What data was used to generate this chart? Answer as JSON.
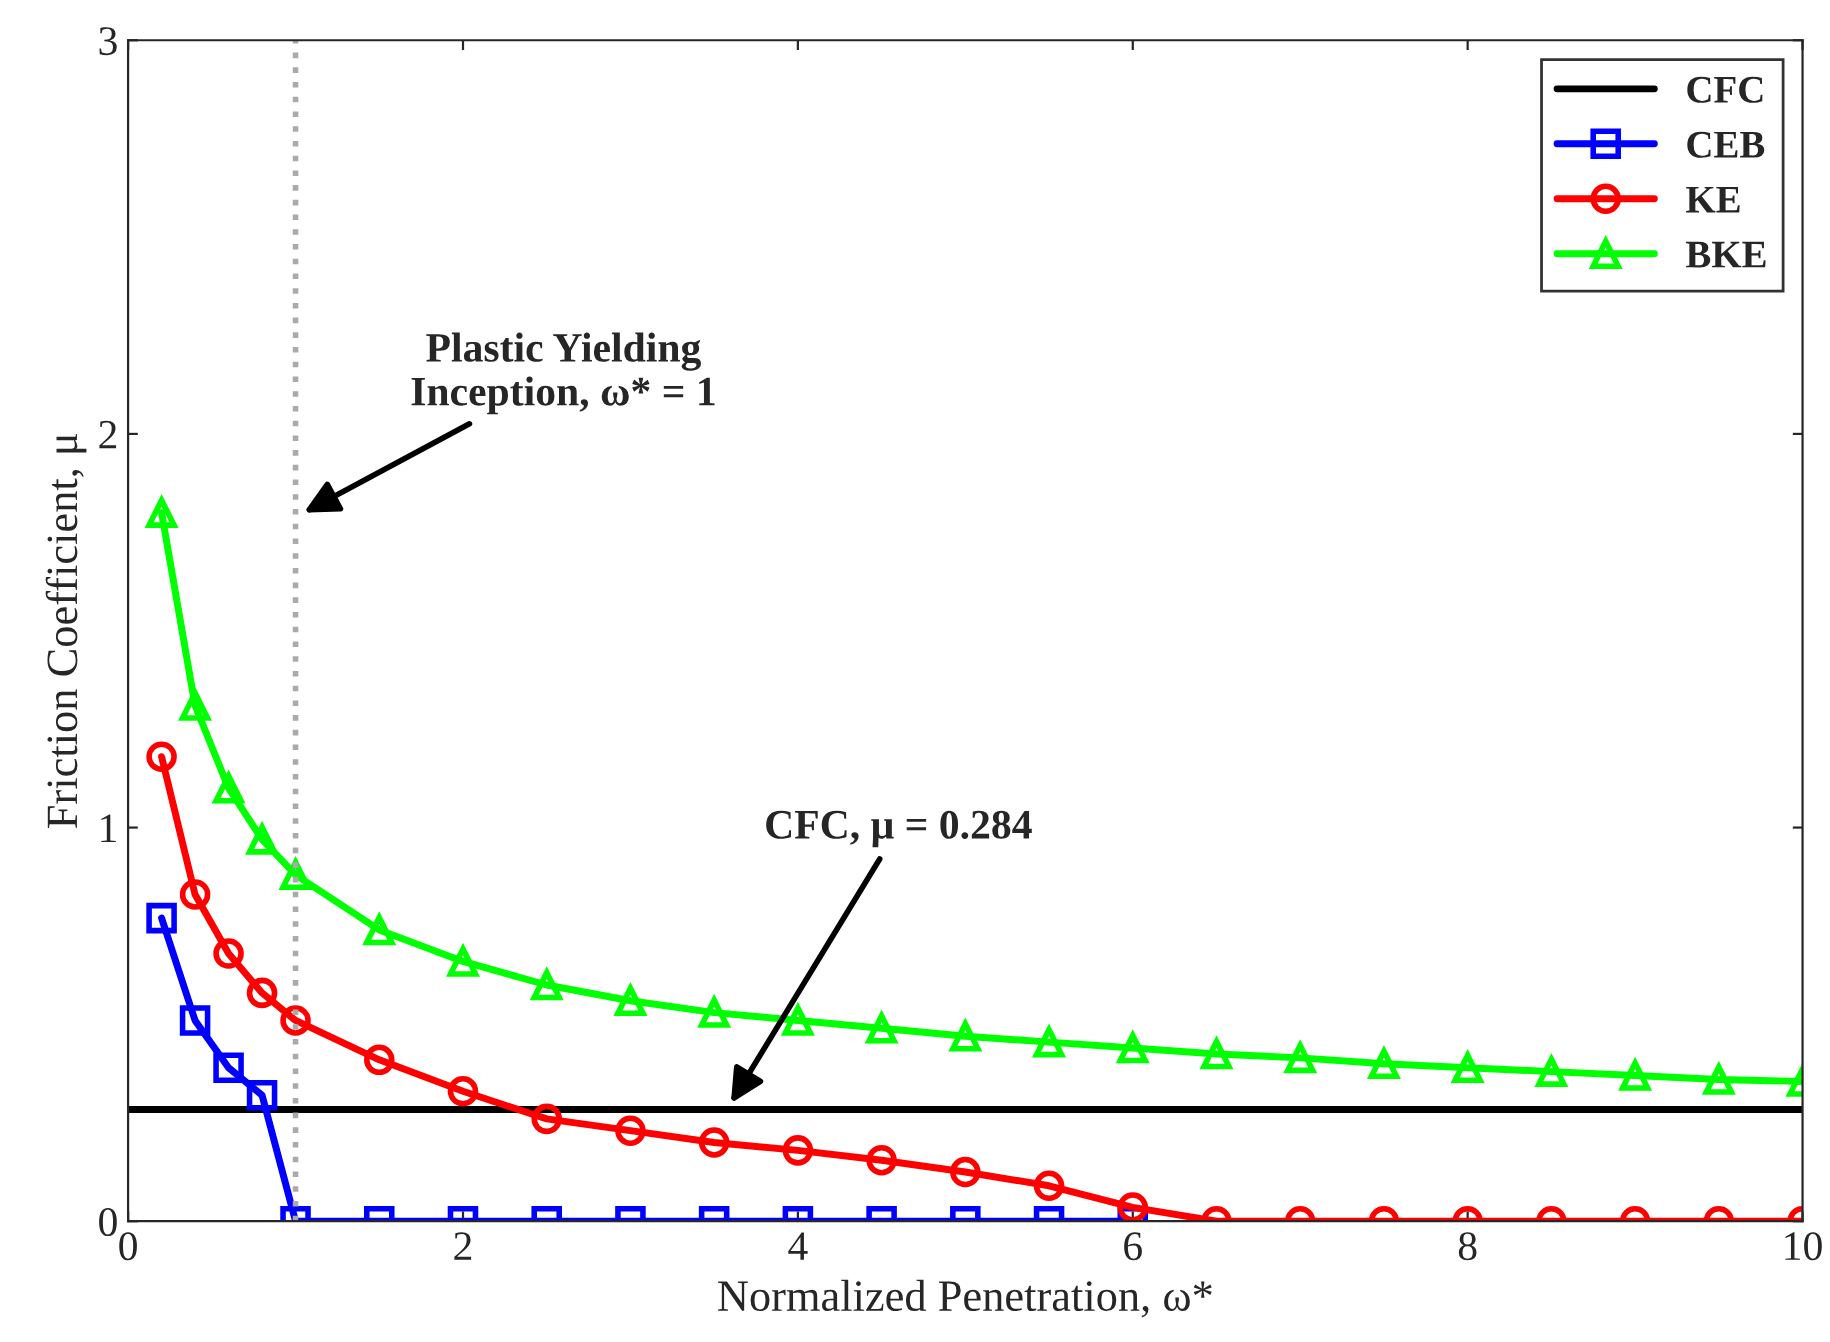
{
  "chart_data": {
    "type": "line",
    "xlabel": "Normalized Penetration, ω*",
    "ylabel": "Friction Coefficient, μ",
    "xlim": [
      0,
      10
    ],
    "ylim": [
      0,
      3
    ],
    "xticks": [
      0,
      2,
      4,
      6,
      8,
      10
    ],
    "yticks": [
      0,
      1,
      2,
      3
    ],
    "grid": false,
    "legend": "top right",
    "series": [
      {
        "name": "CFC",
        "color": "#000000",
        "marker": "none",
        "x": [
          0,
          10
        ],
        "values": [
          0.284,
          0.284
        ]
      },
      {
        "name": "CEB",
        "color": "#0000ff",
        "marker": "square",
        "x": [
          0.2,
          0.4,
          0.6,
          0.8,
          1,
          1.5,
          2,
          2.5,
          3,
          3.5,
          4,
          4.5,
          5,
          5.5,
          6
        ],
        "values": [
          0.77,
          0.51,
          0.39,
          0.32,
          0,
          0,
          0,
          0,
          0,
          0,
          0,
          0,
          0,
          0,
          0
        ]
      },
      {
        "name": "KE",
        "color": "#ff0000",
        "marker": "circle",
        "x": [
          0.2,
          0.4,
          0.6,
          0.8,
          1,
          1.5,
          2,
          2.5,
          3,
          3.5,
          4,
          4.5,
          5,
          5.5,
          6,
          6.5,
          7,
          7.5,
          8,
          8.5,
          9,
          9.5,
          10
        ],
        "values": [
          1.18,
          0.83,
          0.68,
          0.58,
          0.51,
          0.41,
          0.33,
          0.26,
          0.23,
          0.2,
          0.18,
          0.155,
          0.125,
          0.09,
          0.035,
          0,
          0,
          0,
          0,
          0,
          0,
          0,
          0
        ]
      },
      {
        "name": "BKE",
        "color": "#00ff00",
        "marker": "triangle",
        "x": [
          0.2,
          0.4,
          0.6,
          0.8,
          1,
          1.5,
          2,
          2.5,
          3,
          3.5,
          4,
          4.5,
          5,
          5.5,
          6,
          6.5,
          7,
          7.5,
          8,
          8.5,
          9,
          9.5,
          10
        ],
        "values": [
          1.8,
          1.31,
          1.1,
          0.97,
          0.88,
          0.74,
          0.66,
          0.6,
          0.56,
          0.53,
          0.51,
          0.49,
          0.47,
          0.455,
          0.44,
          0.425,
          0.415,
          0.4,
          0.39,
          0.38,
          0.37,
          0.36,
          0.355
        ]
      }
    ],
    "ref_lines": [
      {
        "axis": "x",
        "value": 1,
        "color": "#aaaaaa",
        "line_style": "dotted"
      }
    ],
    "annotations": [
      {
        "text": "Plastic Yielding\nInception, ω* = 1",
        "x": 1.05,
        "y": 1.8
      },
      {
        "text": "CFC, μ = 0.284",
        "x": 3.6,
        "y": 0.3
      }
    ]
  }
}
